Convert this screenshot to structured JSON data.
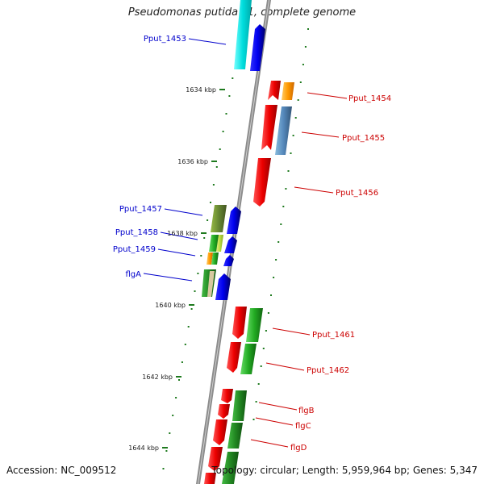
{
  "title": "Pseudomonas putida F1, complete genome",
  "footer": {
    "accession": "Accession: NC_009512",
    "summary": "Topology: circular; Length: 5,959,964 bp; Genes: 5,347"
  },
  "colors": {
    "plus_label": "#0000cc",
    "minus_label": "#cc0000",
    "gc_tick": "#1e7a1e",
    "backbone": "#8c8c8c"
  },
  "scale_labels": [
    "1634 kbp",
    "1636 kbp",
    "1638 kbp",
    "1640 kbp",
    "1642 kbp",
    "1644 kbp"
  ],
  "genes_plus": [
    "Pput_1453",
    "Pput_1457",
    "Pput_1458",
    "Pput_1459",
    "flgA"
  ],
  "genes_minus": [
    "Pput_1454",
    "Pput_1455",
    "Pput_1456",
    "Pput_1461",
    "Pput_1462",
    "flgB",
    "flgC",
    "flgD"
  ]
}
